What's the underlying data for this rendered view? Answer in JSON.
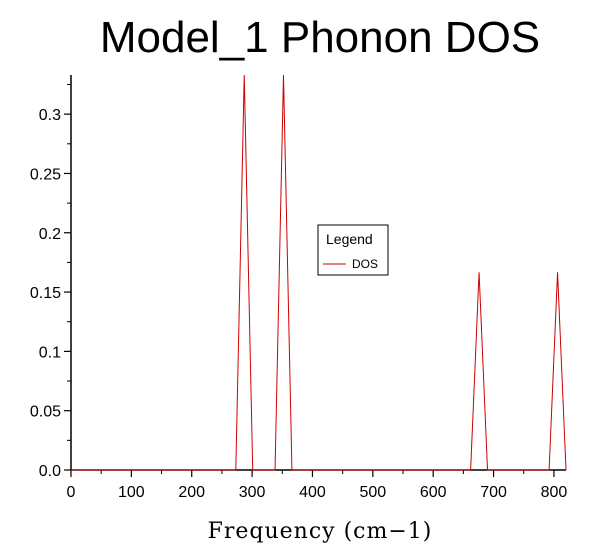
{
  "chart_data": {
    "type": "line",
    "title": "Model_1 Phonon DOS",
    "xlabel": "Frequency (cm−1)",
    "ylabel": "",
    "xlim": [
      0,
      820
    ],
    "ylim": [
      0,
      0.333
    ],
    "xticks": [
      0,
      100,
      200,
      300,
      400,
      500,
      600,
      700,
      800
    ],
    "yticks": [
      0.0,
      0.05,
      0.1,
      0.15,
      0.2,
      0.25,
      0.3
    ],
    "ytick_labels": [
      "0.0",
      "0.05",
      "0.1",
      "0.15",
      "0.2",
      "0.25",
      "0.3"
    ],
    "grid": false,
    "legend": {
      "title": "Legend",
      "placement": "center"
    },
    "series": [
      {
        "name": "DOS",
        "color": "#cc0000",
        "x": [
          0,
          273,
          287,
          301,
          338,
          352,
          366,
          662,
          676,
          690,
          792,
          806,
          820
        ],
        "y": [
          0,
          0,
          0.333,
          0,
          0,
          0.333,
          0,
          0,
          0.1667,
          0,
          0,
          0.1667,
          0
        ]
      }
    ]
  }
}
